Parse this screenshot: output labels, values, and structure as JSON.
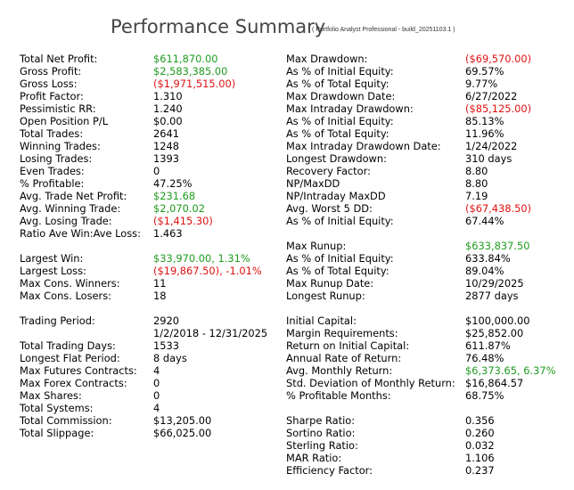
{
  "header": {
    "title": "Performance Summary",
    "subtitle": "( Portfolio Analyst Professional - build_20251103.1 )"
  },
  "colors": {
    "positive": "#1f9b1f",
    "negative": "#e01010",
    "text": "#000000",
    "title": "#444444"
  },
  "left": [
    {
      "label": "Total Net Profit:",
      "value": "$611,870.00",
      "tone": "pos"
    },
    {
      "label": "Gross Profit:",
      "value": "$2,583,385.00",
      "tone": "pos"
    },
    {
      "label": "Gross Loss:",
      "value": "($1,971,515.00)",
      "tone": "neg"
    },
    {
      "label": "Profit Factor:",
      "value": "1.310",
      "tone": ""
    },
    {
      "label": "Pessimistic RR:",
      "value": "1.240",
      "tone": ""
    },
    {
      "label": "Open Position P/L",
      "value": "$0.00",
      "tone": ""
    },
    {
      "label": "Total Trades:",
      "value": "2641",
      "tone": ""
    },
    {
      "label": "Winning Trades:",
      "value": "1248",
      "tone": ""
    },
    {
      "label": "Losing Trades:",
      "value": "1393",
      "tone": ""
    },
    {
      "label": "Even Trades:",
      "value": "0",
      "tone": ""
    },
    {
      "label": "% Profitable:",
      "value": "47.25%",
      "tone": ""
    },
    {
      "label": "Avg. Trade Net Profit:",
      "value": "$231.68",
      "tone": "pos"
    },
    {
      "label": "Avg. Winning Trade:",
      "value": "$2,070.02",
      "tone": "pos"
    },
    {
      "label": "Avg. Losing Trade:",
      "value": "($1,415.30)",
      "tone": "neg"
    },
    {
      "label": "Ratio Ave Win:Ave Loss:",
      "value": "1.463",
      "tone": ""
    },
    {
      "label": "",
      "value": "",
      "tone": "",
      "gap": true
    },
    {
      "label": "Largest Win:",
      "value": "$33,970.00, 1.31%",
      "tone": "pos"
    },
    {
      "label": "Largest Loss:",
      "value": "($19,867.50), -1.01%",
      "tone": "neg"
    },
    {
      "label": "Max Cons. Winners:",
      "value": "11",
      "tone": ""
    },
    {
      "label": "Max Cons. Losers:",
      "value": "18",
      "tone": ""
    },
    {
      "label": "",
      "value": "",
      "tone": "",
      "gap": true
    },
    {
      "label": "Trading Period:",
      "value": "2920",
      "tone": ""
    },
    {
      "label": "",
      "value": "1/2/2018 - 12/31/2025",
      "tone": ""
    },
    {
      "label": "Total Trading Days:",
      "value": "1533",
      "tone": ""
    },
    {
      "label": "Longest Flat Period:",
      "value": "8 days",
      "tone": ""
    },
    {
      "label": "Max Futures Contracts:",
      "value": "4",
      "tone": ""
    },
    {
      "label": "Max Forex Contracts:",
      "value": "0",
      "tone": ""
    },
    {
      "label": "Max Shares:",
      "value": "0",
      "tone": ""
    },
    {
      "label": "Total Systems:",
      "value": "4",
      "tone": ""
    },
    {
      "label": "Total Commission:",
      "value": "$13,205.00",
      "tone": ""
    },
    {
      "label": "Total Slippage:",
      "value": "$66,025.00",
      "tone": ""
    }
  ],
  "right": [
    {
      "label": "Max Drawdown:",
      "value": "($69,570.00)",
      "tone": "neg"
    },
    {
      "label": "As % of Initial Equity:",
      "value": "69.57%",
      "tone": ""
    },
    {
      "label": "As % of Total Equity:",
      "value": "9.77%",
      "tone": ""
    },
    {
      "label": "Max Drawdown Date:",
      "value": "6/27/2022",
      "tone": ""
    },
    {
      "label": "Max Intraday Drawdown:",
      "value": "($85,125.00)",
      "tone": "neg"
    },
    {
      "label": "As % of Initial Equity:",
      "value": "85.13%",
      "tone": ""
    },
    {
      "label": "As % of Total Equity:",
      "value": "11.96%",
      "tone": ""
    },
    {
      "label": "Max Intraday Drawdown Date:",
      "value": "1/24/2022",
      "tone": ""
    },
    {
      "label": "Longest Drawdown:",
      "value": "310 days",
      "tone": ""
    },
    {
      "label": "Recovery Factor:",
      "value": "8.80",
      "tone": ""
    },
    {
      "label": "NP/MaxDD",
      "value": "8.80",
      "tone": ""
    },
    {
      "label": "NP/Intraday MaxDD",
      "value": "7.19",
      "tone": ""
    },
    {
      "label": "Avg. Worst 5 DD:",
      "value": "($67,438.50)",
      "tone": "neg"
    },
    {
      "label": "As % of Initial Equity:",
      "value": "67.44%",
      "tone": ""
    },
    {
      "label": "",
      "value": "",
      "tone": "",
      "gap": true
    },
    {
      "label": "Max Runup:",
      "value": "$633,837.50",
      "tone": "pos"
    },
    {
      "label": "As % of Initial Equity:",
      "value": "633.84%",
      "tone": ""
    },
    {
      "label": "As % of Total Equity:",
      "value": "89.04%",
      "tone": ""
    },
    {
      "label": "Max Runup Date:",
      "value": "10/29/2025",
      "tone": ""
    },
    {
      "label": "Longest Runup:",
      "value": "2877 days",
      "tone": ""
    },
    {
      "label": "",
      "value": "",
      "tone": "",
      "gap": true
    },
    {
      "label": "Initial Capital:",
      "value": "$100,000.00",
      "tone": ""
    },
    {
      "label": "Margin Requirements:",
      "value": "$25,852.00",
      "tone": ""
    },
    {
      "label": "Return on Initial Capital:",
      "value": "611.87%",
      "tone": ""
    },
    {
      "label": "Annual Rate of Return:",
      "value": "76.48%",
      "tone": ""
    },
    {
      "label": "Avg. Monthly Return:",
      "value": "$6,373.65, 6.37%",
      "tone": "pos"
    },
    {
      "label": "Std. Deviation of Monthly Return:",
      "value": "$16,864.57",
      "tone": ""
    },
    {
      "label": "% Profitable Months:",
      "value": "68.75%",
      "tone": ""
    },
    {
      "label": "",
      "value": "",
      "tone": "",
      "gap": true
    },
    {
      "label": "Sharpe Ratio:",
      "value": "0.356",
      "tone": ""
    },
    {
      "label": "Sortino Ratio:",
      "value": "0.260",
      "tone": ""
    },
    {
      "label": "Sterling Ratio:",
      "value": "0.032",
      "tone": ""
    },
    {
      "label": "MAR Ratio:",
      "value": "1.106",
      "tone": ""
    },
    {
      "label": "Efficiency Factor:",
      "value": "0.237",
      "tone": ""
    }
  ]
}
